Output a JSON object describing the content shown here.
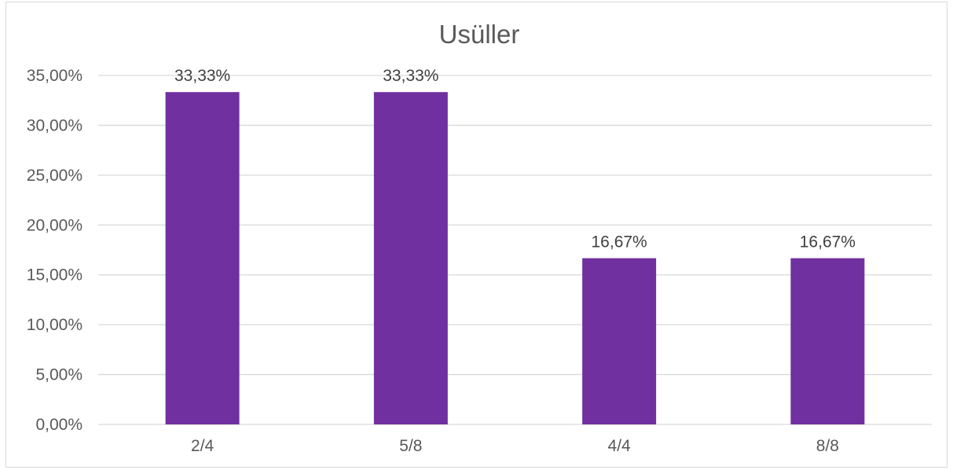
{
  "chart_data": {
    "type": "bar",
    "title": "Usüller",
    "xlabel": "",
    "ylabel": "",
    "categories": [
      "2/4",
      "5/8",
      "4/4",
      "8/8"
    ],
    "values": [
      33.33,
      33.33,
      16.67,
      16.67
    ],
    "data_labels": [
      "33,33%",
      "33,33%",
      "16,67%",
      "16,67%"
    ],
    "ylim": [
      0,
      35
    ],
    "y_ticks": [
      0,
      5,
      10,
      15,
      20,
      25,
      30,
      35
    ],
    "y_tick_labels": [
      "0,00%",
      "5,00%",
      "10,00%",
      "15,00%",
      "20,00%",
      "25,00%",
      "30,00%",
      "35,00%"
    ],
    "grid": true,
    "legend": "none",
    "bar_color": "#7030A0"
  }
}
